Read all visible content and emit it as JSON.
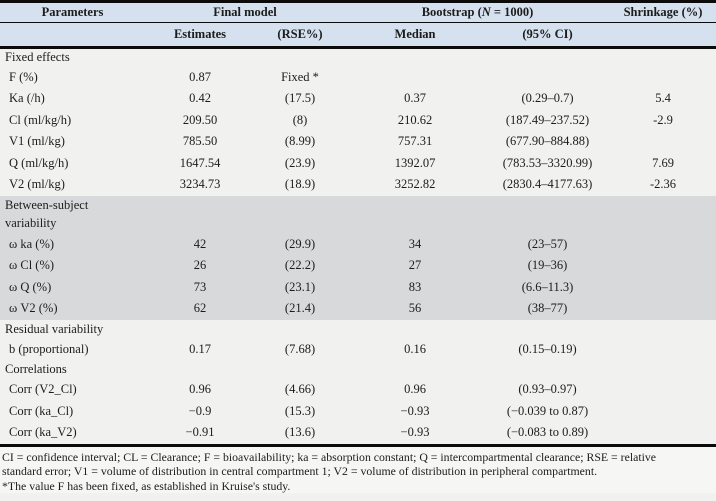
{
  "colors": {
    "header_bg": "#d5e1ee",
    "shaded_bg": "#d8d9db",
    "body_bg": "#f1f1ef",
    "footer_bg": "#f6f6f4",
    "border": "#0b0b0b",
    "text": "#1c1c1c"
  },
  "table": {
    "header": {
      "parameters": "Parameters",
      "final_model": "Final model",
      "bootstrap_prefix": "Bootstrap (",
      "bootstrap_n": "N",
      "bootstrap_suffix": " = 1000)",
      "shrinkage": "Shrinkage (%)",
      "estimates": "Estimates",
      "rse": "(RSE%)",
      "median": "Median",
      "ci": "(95% CI)"
    },
    "rows": [
      {
        "type": "section",
        "label": "Fixed effects",
        "shaded": false,
        "tall": false
      },
      {
        "type": "data",
        "shaded": false,
        "cells": [
          "F (%)",
          "0.87",
          "Fixed *",
          "",
          "",
          ""
        ]
      },
      {
        "type": "data",
        "shaded": false,
        "cells": [
          "Ka (/h)",
          "0.42",
          "(17.5)",
          "0.37",
          "(0.29–0.7)",
          "5.4"
        ]
      },
      {
        "type": "data",
        "shaded": false,
        "cells": [
          "Cl (ml/kg/h)",
          "209.50",
          "(8)",
          "210.62",
          "(187.49–237.52)",
          "-2.9"
        ]
      },
      {
        "type": "data",
        "shaded": false,
        "cells": [
          "V1 (ml/kg)",
          "785.50",
          "(8.99)",
          "757.31",
          "(677.90–884.88)",
          ""
        ]
      },
      {
        "type": "data",
        "shaded": false,
        "cells": [
          "Q (ml/kg/h)",
          "1647.54",
          "(23.9)",
          "1392.07",
          "(783.53–3320.99)",
          "7.69"
        ]
      },
      {
        "type": "data",
        "shaded": false,
        "cells": [
          "V2 (ml/kg)",
          "3234.73",
          "(18.9)",
          "3252.82",
          "(2830.4–4177.63)",
          "-2.36"
        ]
      },
      {
        "type": "section",
        "label": "Between-subject variability",
        "shaded": true,
        "tall": true
      },
      {
        "type": "data",
        "shaded": true,
        "cells": [
          "ω ka (%)",
          "42",
          "(29.9)",
          "34",
          "(23–57)",
          ""
        ]
      },
      {
        "type": "data",
        "shaded": true,
        "cells": [
          "ω Cl (%)",
          "26",
          "(22.2)",
          "27",
          "(19–36)",
          ""
        ]
      },
      {
        "type": "data",
        "shaded": true,
        "cells": [
          "ω Q (%)",
          "73",
          "(23.1)",
          "83",
          "(6.6–11.3)",
          ""
        ]
      },
      {
        "type": "data",
        "shaded": true,
        "cells": [
          "ω V2 (%)",
          "62",
          "(21.4)",
          "56",
          "(38–77)",
          ""
        ]
      },
      {
        "type": "section",
        "label": "Residual variability",
        "shaded": false,
        "tall": false
      },
      {
        "type": "data",
        "shaded": false,
        "cells": [
          "b (proportional)",
          "0.17",
          "(7.68)",
          "0.16",
          "(0.15–0.19)",
          ""
        ]
      },
      {
        "type": "section",
        "label": "Correlations",
        "shaded": false,
        "tall": false
      },
      {
        "type": "data",
        "shaded": false,
        "cells": [
          "Corr (V2_Cl)",
          "0.96",
          "(4.66)",
          "0.96",
          "(0.93–0.97)",
          ""
        ]
      },
      {
        "type": "data",
        "shaded": false,
        "cells": [
          "Corr (ka_Cl)",
          "−0.9",
          "(15.3)",
          "−0.93",
          "(−0.039 to 0.87)",
          ""
        ]
      },
      {
        "type": "data",
        "shaded": false,
        "cells": [
          "Corr (ka_V2)",
          "−0.91",
          "(13.6)",
          "−0.93",
          "(−0.083 to 0.89)",
          ""
        ]
      }
    ]
  },
  "footnotes": {
    "line1": "CI = confidence interval; CL = Clearance; F = bioavailability; ka = absorption constant; Q = intercompartmental clearance; RSE = relative",
    "line2": "standard error; V1 = volume of distribution in central compartment 1; V2 = volume of distribution in peripheral compartment.",
    "line3": "*The value F has been fixed, as established in Kruise's study."
  }
}
